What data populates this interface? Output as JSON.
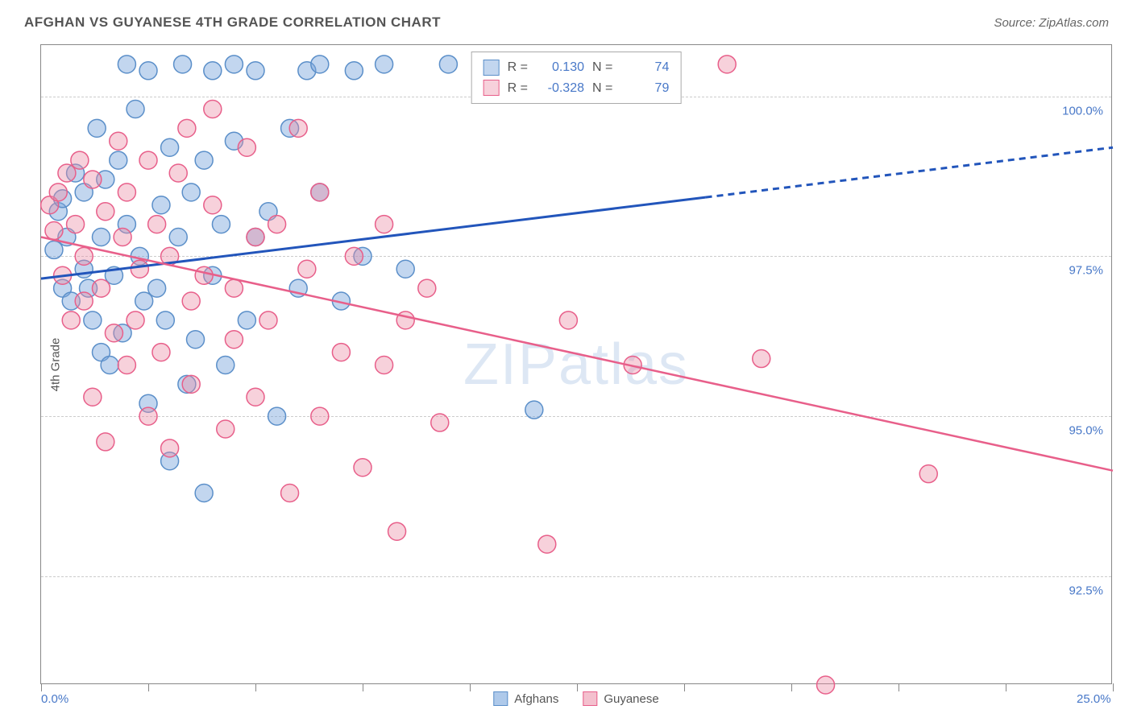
{
  "header": {
    "title": "AFGHAN VS GUYANESE 4TH GRADE CORRELATION CHART",
    "source": "Source: ZipAtlas.com"
  },
  "chart": {
    "type": "scatter",
    "yaxis_label": "4th Grade",
    "watermark": "ZIPatlas",
    "background_color": "#ffffff",
    "grid_color": "#cccccc",
    "border_color": "#888888",
    "xlim": [
      0,
      25
    ],
    "ylim": [
      90.8,
      100.8
    ],
    "xticks": [
      0,
      2.5,
      5,
      7.5,
      10,
      12.5,
      15,
      17.5,
      20,
      22.5,
      25
    ],
    "xtick_labels": {
      "0": "0.0%",
      "25": "25.0%"
    },
    "yticks": [
      92.5,
      95.0,
      97.5,
      100.0
    ],
    "ytick_labels": [
      "92.5%",
      "95.0%",
      "97.5%",
      "100.0%"
    ],
    "tick_label_color": "#4878c8",
    "series": [
      {
        "name": "Afghans",
        "marker_color_fill": "rgba(120,165,220,0.45)",
        "marker_color_stroke": "#5b8fc9",
        "marker_radius": 11,
        "line_color": "#2255bb",
        "line_width": 3,
        "r_value": "0.130",
        "n_value": "74",
        "trend": {
          "x1": 0,
          "y1": 97.15,
          "x2": 25,
          "y2": 99.2,
          "solid_until_x": 15.5
        },
        "points": [
          [
            0.3,
            97.6
          ],
          [
            0.4,
            98.2
          ],
          [
            0.5,
            98.4
          ],
          [
            0.5,
            97.0
          ],
          [
            0.6,
            97.8
          ],
          [
            0.7,
            96.8
          ],
          [
            0.8,
            98.8
          ],
          [
            1.0,
            97.3
          ],
          [
            1.0,
            98.5
          ],
          [
            1.1,
            97.0
          ],
          [
            1.2,
            96.5
          ],
          [
            1.3,
            99.5
          ],
          [
            1.4,
            96.0
          ],
          [
            1.4,
            97.8
          ],
          [
            1.5,
            98.7
          ],
          [
            1.6,
            95.8
          ],
          [
            1.7,
            97.2
          ],
          [
            1.8,
            99.0
          ],
          [
            1.9,
            96.3
          ],
          [
            2.0,
            100.5
          ],
          [
            2.0,
            98.0
          ],
          [
            2.2,
            99.8
          ],
          [
            2.3,
            97.5
          ],
          [
            2.4,
            96.8
          ],
          [
            2.5,
            95.2
          ],
          [
            2.5,
            100.4
          ],
          [
            2.7,
            97.0
          ],
          [
            2.8,
            98.3
          ],
          [
            2.9,
            96.5
          ],
          [
            3.0,
            99.2
          ],
          [
            3.0,
            94.3
          ],
          [
            3.2,
            97.8
          ],
          [
            3.3,
            100.5
          ],
          [
            3.4,
            95.5
          ],
          [
            3.5,
            98.5
          ],
          [
            3.6,
            96.2
          ],
          [
            3.8,
            99.0
          ],
          [
            3.8,
            93.8
          ],
          [
            4.0,
            97.2
          ],
          [
            4.0,
            100.4
          ],
          [
            4.2,
            98.0
          ],
          [
            4.3,
            95.8
          ],
          [
            4.5,
            99.3
          ],
          [
            4.5,
            100.5
          ],
          [
            4.8,
            96.5
          ],
          [
            5.0,
            97.8
          ],
          [
            5.0,
            100.4
          ],
          [
            5.3,
            98.2
          ],
          [
            5.5,
            95.0
          ],
          [
            5.8,
            99.5
          ],
          [
            6.0,
            97.0
          ],
          [
            6.2,
            100.4
          ],
          [
            6.5,
            98.5
          ],
          [
            6.5,
            100.5
          ],
          [
            7.0,
            96.8
          ],
          [
            7.3,
            100.4
          ],
          [
            7.5,
            97.5
          ],
          [
            8.0,
            100.5
          ],
          [
            8.5,
            97.3
          ],
          [
            9.5,
            100.5
          ],
          [
            11.5,
            95.1
          ]
        ]
      },
      {
        "name": "Guyanese",
        "marker_color_fill": "rgba(235,140,165,0.4)",
        "marker_color_stroke": "#e85f8a",
        "marker_radius": 11,
        "line_color": "#e85f8a",
        "line_width": 2.5,
        "r_value": "-0.328",
        "n_value": "79",
        "trend": {
          "x1": 0,
          "y1": 97.8,
          "x2": 25,
          "y2": 94.15,
          "solid_until_x": 25
        },
        "points": [
          [
            0.2,
            98.3
          ],
          [
            0.3,
            97.9
          ],
          [
            0.4,
            98.5
          ],
          [
            0.5,
            97.2
          ],
          [
            0.6,
            98.8
          ],
          [
            0.7,
            96.5
          ],
          [
            0.8,
            98.0
          ],
          [
            0.9,
            99.0
          ],
          [
            1.0,
            97.5
          ],
          [
            1.0,
            96.8
          ],
          [
            1.2,
            98.7
          ],
          [
            1.2,
            95.3
          ],
          [
            1.4,
            97.0
          ],
          [
            1.5,
            98.2
          ],
          [
            1.5,
            94.6
          ],
          [
            1.7,
            96.3
          ],
          [
            1.8,
            99.3
          ],
          [
            1.9,
            97.8
          ],
          [
            2.0,
            95.8
          ],
          [
            2.0,
            98.5
          ],
          [
            2.2,
            96.5
          ],
          [
            2.3,
            97.3
          ],
          [
            2.5,
            99.0
          ],
          [
            2.5,
            95.0
          ],
          [
            2.7,
            98.0
          ],
          [
            2.8,
            96.0
          ],
          [
            3.0,
            97.5
          ],
          [
            3.0,
            94.5
          ],
          [
            3.2,
            98.8
          ],
          [
            3.4,
            99.5
          ],
          [
            3.5,
            96.8
          ],
          [
            3.5,
            95.5
          ],
          [
            3.8,
            97.2
          ],
          [
            4.0,
            98.3
          ],
          [
            4.0,
            99.8
          ],
          [
            4.3,
            94.8
          ],
          [
            4.5,
            97.0
          ],
          [
            4.5,
            96.2
          ],
          [
            4.8,
            99.2
          ],
          [
            5.0,
            97.8
          ],
          [
            5.0,
            95.3
          ],
          [
            5.3,
            96.5
          ],
          [
            5.5,
            98.0
          ],
          [
            5.8,
            93.8
          ],
          [
            6.0,
            99.5
          ],
          [
            6.2,
            97.3
          ],
          [
            6.5,
            95.0
          ],
          [
            6.5,
            98.5
          ],
          [
            7.0,
            96.0
          ],
          [
            7.3,
            97.5
          ],
          [
            7.5,
            94.2
          ],
          [
            8.0,
            98.0
          ],
          [
            8.0,
            95.8
          ],
          [
            8.3,
            93.2
          ],
          [
            8.5,
            96.5
          ],
          [
            9.0,
            97.0
          ],
          [
            9.3,
            94.9
          ],
          [
            11.8,
            93.0
          ],
          [
            12.3,
            96.5
          ],
          [
            13.8,
            95.8
          ],
          [
            16.0,
            100.5
          ],
          [
            16.8,
            95.9
          ],
          [
            18.3,
            90.8
          ],
          [
            20.7,
            94.1
          ]
        ]
      }
    ],
    "legend_top": {
      "r_label": "R =",
      "n_label": "N ="
    },
    "legend_bottom": [
      {
        "label": "Afghans",
        "fill": "rgba(120,165,220,0.6)",
        "stroke": "#5b8fc9"
      },
      {
        "label": "Guyanese",
        "fill": "rgba(235,140,165,0.55)",
        "stroke": "#e85f8a"
      }
    ]
  }
}
